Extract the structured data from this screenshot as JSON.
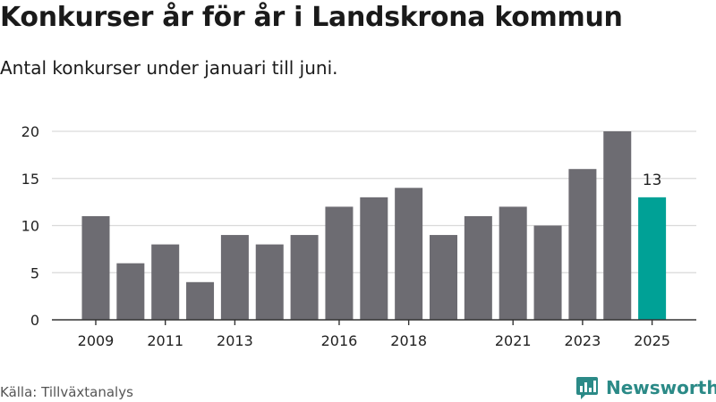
{
  "title": "Konkurser år för år i Landskrona kommun",
  "subtitle": "Antal konkurser under januari till juni.",
  "source": "Källa: Tillväxtanalys",
  "brand": {
    "name": "Newsworthy",
    "color": "#2b8a87",
    "icon": "newsworthy-bar-chart-icon"
  },
  "colors": {
    "bar": "#6d6c72",
    "highlight": "#00a196",
    "grid": "#d9d9d9",
    "axis": "#333333"
  },
  "chart_data": {
    "type": "bar",
    "title": "Konkurser år för år i Landskrona kommun",
    "subtitle": "Antal konkurser under januari till juni.",
    "xlabel": "",
    "ylabel": "",
    "categories": [
      "2009",
      "2010",
      "2011",
      "2012",
      "2013",
      "2014",
      "2015",
      "2016",
      "2017",
      "2018",
      "2019",
      "2020",
      "2021",
      "2022",
      "2023",
      "2024",
      "2025"
    ],
    "values": [
      11,
      6,
      8,
      4,
      9,
      8,
      9,
      12,
      13,
      14,
      9,
      11,
      12,
      10,
      16,
      20,
      13
    ],
    "x_tick_labels": [
      "2009",
      "2011",
      "2013",
      "2016",
      "2018",
      "2021",
      "2023",
      "2025"
    ],
    "y_ticks": [
      0,
      5,
      10,
      15,
      20
    ],
    "ylim": [
      0,
      20
    ],
    "highlight_category": "2025",
    "highlight_label": "13",
    "grid": true,
    "legend": "none"
  }
}
